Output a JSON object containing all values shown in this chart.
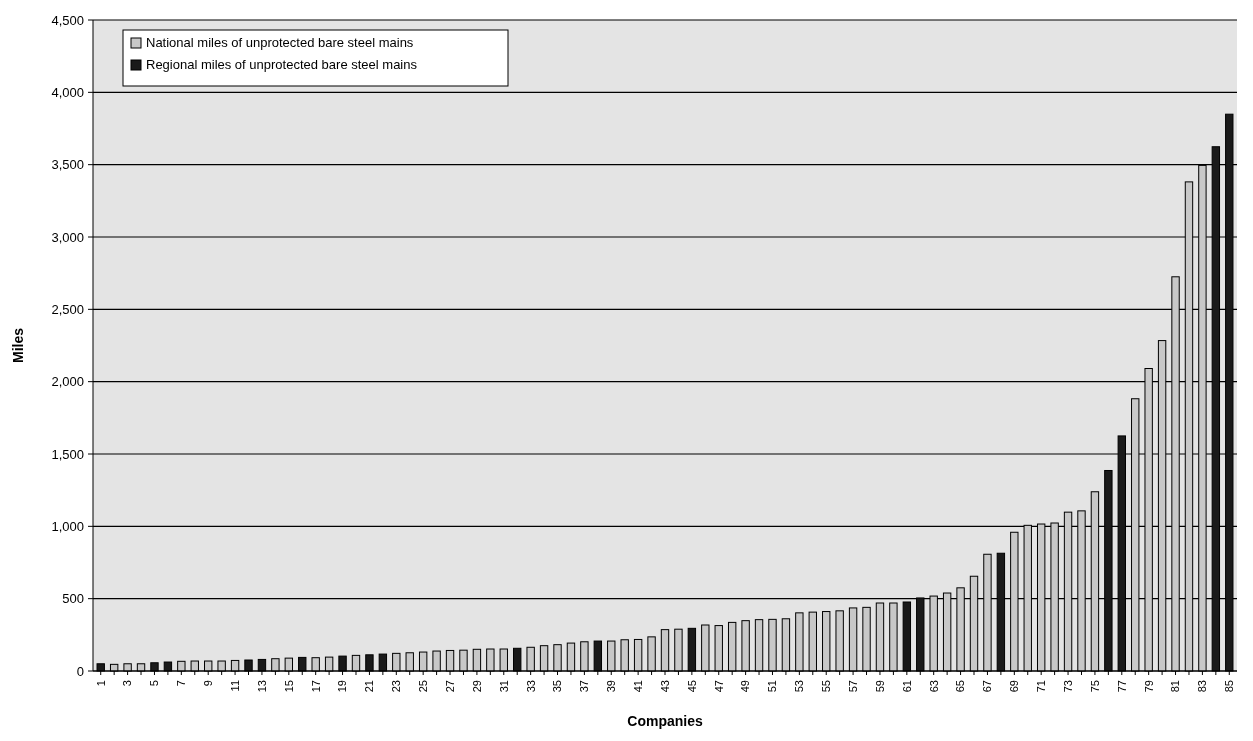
{
  "chart_data": {
    "type": "bar",
    "xlabel": "Companies",
    "ylabel": "Miles",
    "categories": [
      "1",
      null,
      "3",
      null,
      "5",
      null,
      "7",
      null,
      "9",
      null,
      "11",
      null,
      "13",
      null,
      "15",
      null,
      "17",
      null,
      "19",
      null,
      "21",
      null,
      "23",
      null,
      "25",
      null,
      "27",
      null,
      "29",
      null,
      "31",
      null,
      "33",
      null,
      "35",
      null,
      "37",
      null,
      "39",
      null,
      "41",
      null,
      "43",
      null,
      "45",
      null,
      "47",
      null,
      "49",
      null,
      "51",
      null,
      "53",
      null,
      "55",
      null,
      "57",
      null,
      "59",
      null,
      "61",
      null,
      "63",
      null,
      "65",
      null,
      "67",
      null,
      "69",
      null,
      "71",
      null,
      "73",
      null,
      "75",
      null,
      "77",
      null,
      "79",
      null,
      "81",
      null,
      "83",
      null,
      "85"
    ],
    "series": [
      {
        "name": "National miles of unprotected bare steel mains",
        "color": "#c8c8c8",
        "values": [
          null,
          46,
          50,
          50,
          null,
          null,
          67,
          69,
          69,
          69,
          73,
          null,
          null,
          85,
          89,
          null,
          92,
          96,
          null,
          108,
          null,
          null,
          122,
          126,
          131,
          138,
          142,
          144,
          150,
          152,
          152,
          null,
          164,
          175,
          182,
          193,
          202,
          null,
          207,
          216,
          218,
          236,
          286,
          289,
          null,
          318,
          314,
          336,
          348,
          355,
          357,
          361,
          402,
          407,
          411,
          416,
          436,
          440,
          470,
          470,
          null,
          null,
          518,
          539,
          575,
          655,
          807,
          null,
          959,
          1007,
          1016,
          1023,
          1098,
          1107,
          1239,
          null,
          null,
          1882,
          2091,
          2284,
          2725,
          3381,
          3495,
          null,
          null
        ]
      },
      {
        "name": "Regional miles of unprotected bare steel mains",
        "color": "#1a1a1a",
        "values": [
          50,
          null,
          null,
          null,
          57,
          62,
          null,
          null,
          null,
          null,
          null,
          76,
          80,
          null,
          null,
          94,
          null,
          null,
          103,
          null,
          112,
          117,
          null,
          null,
          null,
          null,
          null,
          null,
          null,
          null,
          null,
          157,
          null,
          null,
          null,
          null,
          null,
          207,
          null,
          null,
          null,
          null,
          null,
          null,
          295,
          null,
          null,
          null,
          null,
          null,
          null,
          null,
          null,
          null,
          null,
          null,
          null,
          null,
          null,
          null,
          477,
          505,
          null,
          null,
          null,
          null,
          null,
          814,
          null,
          null,
          null,
          null,
          null,
          null,
          null,
          1386,
          1625,
          null,
          null,
          null,
          null,
          null,
          null,
          3624,
          3849
        ]
      }
    ],
    "ylim": [
      0,
      4500
    ],
    "yticks": [
      0,
      500,
      {
        "value": 1000,
        "label": "1,000"
      },
      {
        "value": 1500,
        "label": "1,500"
      },
      {
        "value": 2000,
        "label": "2,000"
      },
      {
        "value": 2500,
        "label": "2,500"
      },
      {
        "value": 3000,
        "label": "3,000"
      },
      {
        "value": 3500,
        "label": "3,500"
      },
      {
        "value": 4000,
        "label": "4,000"
      },
      {
        "value": 4500,
        "label": "4,500"
      }
    ],
    "grid": "y",
    "legend": "top left"
  }
}
